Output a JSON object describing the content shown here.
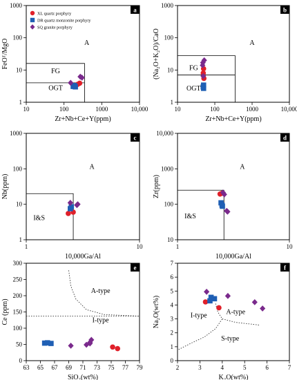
{
  "colors": {
    "xl": "#e0202a",
    "dr": "#1f5fb4",
    "sq": "#7a2a8c"
  },
  "chart_data": [
    {
      "id": "a",
      "type": "scatter",
      "panel_label": "a",
      "xscale": "log",
      "yscale": "log",
      "xlim": [
        10,
        10000
      ],
      "ylim": [
        1,
        1000
      ],
      "xticks": [
        "10",
        "100",
        "1000",
        "10,000"
      ],
      "yticks": [
        "1",
        "10",
        "100",
        "1000"
      ],
      "xlabel": "Zr+Nb+Ce+Y(ppm)",
      "ylabel": "FeOᵀ/MgO",
      "legend": {
        "position": "top-left",
        "entries": [
          {
            "name": "XL quartz porphyry",
            "marker": "circle",
            "color_key": "xl"
          },
          {
            "name": "DR quartz monzonite porphyry",
            "marker": "square",
            "color_key": "dr"
          },
          {
            "name": "SQ granite porphyry",
            "marker": "diamond",
            "color_key": "sq"
          }
        ]
      },
      "field_labels": [
        {
          "text": "A",
          "x": 400,
          "y": 60
        },
        {
          "text": "FG",
          "x": 60,
          "y": 8
        },
        {
          "text": "OGT",
          "x": 60,
          "y": 2.4
        }
      ],
      "boundaries": [
        [
          [
            10,
            16
          ],
          [
            350,
            16
          ],
          [
            350,
            1
          ]
        ],
        [
          [
            10,
            4
          ],
          [
            350,
            4
          ]
        ]
      ],
      "series": [
        {
          "name": "XL quartz porphyry",
          "color_key": "xl",
          "marker": "circle",
          "points": [
            [
              230,
              3.6
            ],
            [
              260,
              3.9
            ]
          ]
        },
        {
          "name": "DR quartz monzonite porphyry",
          "color_key": "dr",
          "marker": "square",
          "points": [
            [
              175,
              3.1
            ],
            [
              190,
              3.3
            ],
            [
              200,
              3.0
            ]
          ]
        },
        {
          "name": "SQ granite porphyry",
          "color_key": "sq",
          "marker": "diamond",
          "points": [
            [
              150,
              4.0
            ],
            [
              270,
              6.2
            ],
            [
              300,
              5.8
            ]
          ]
        }
      ]
    },
    {
      "id": "b",
      "type": "scatter",
      "panel_label": "b",
      "xscale": "log",
      "yscale": "log",
      "xlim": [
        10,
        10000
      ],
      "ylim": [
        1,
        1000
      ],
      "xticks": [
        "10",
        "100",
        "1000",
        "10,000"
      ],
      "yticks": [
        "1",
        "10",
        "100",
        "1000"
      ],
      "xlabel": "Zr+Nb+Ce+Y(ppm)",
      "ylabel": "(Na₂O+K₂O)/CaO",
      "field_labels": [
        {
          "text": "A",
          "x": 1000,
          "y": 60
        },
        {
          "text": "FG",
          "x": 27,
          "y": 10
        },
        {
          "text": "OGT",
          "x": 27,
          "y": 2.3
        }
      ],
      "boundaries": [
        [
          [
            10,
            28
          ],
          [
            350,
            28
          ],
          [
            350,
            1
          ]
        ],
        [
          [
            10,
            7
          ],
          [
            350,
            7
          ]
        ]
      ],
      "series": [
        {
          "name": "XL quartz porphyry",
          "color_key": "xl",
          "marker": "circle",
          "points": [
            [
              50,
              11
            ],
            [
              49,
              8
            ],
            [
              51,
              5.5
            ]
          ]
        },
        {
          "name": "DR quartz monzonite porphyry",
          "color_key": "dr",
          "marker": "square",
          "points": [
            [
              49,
              3.0
            ],
            [
              50,
              2.7
            ],
            [
              50,
              3.4
            ]
          ]
        },
        {
          "name": "SQ granite porphyry",
          "color_key": "sq",
          "marker": "diamond",
          "points": [
            [
              48,
              17
            ],
            [
              52,
              20
            ],
            [
              47,
              14
            ],
            [
              49,
              6.5
            ]
          ]
        }
      ]
    },
    {
      "id": "c",
      "type": "scatter",
      "panel_label": "c",
      "xscale": "log",
      "yscale": "log",
      "xlim": [
        1,
        10
      ],
      "ylim": [
        1,
        1000
      ],
      "xticks": [
        "1",
        "10"
      ],
      "yticks": [
        "1",
        "10",
        "100",
        "1000"
      ],
      "xlabel": "10,000Ga/Al",
      "ylabel": "Nb(ppm)",
      "field_labels": [
        {
          "text": "A",
          "x": 3.8,
          "y": 100
        },
        {
          "text": "I&S",
          "x": 1.3,
          "y": 3.6
        }
      ],
      "boundaries": [
        [
          [
            1,
            20
          ],
          [
            2.6,
            20
          ],
          [
            2.6,
            1
          ]
        ]
      ],
      "series": [
        {
          "name": "XL quartz porphyry",
          "color_key": "xl",
          "marker": "circle",
          "points": [
            [
              2.35,
              5.5
            ],
            [
              2.6,
              6.0
            ]
          ]
        },
        {
          "name": "DR quartz monzonite porphyry",
          "color_key": "dr",
          "marker": "square",
          "points": [
            [
              2.45,
              7.5
            ],
            [
              2.5,
              8.5
            ]
          ]
        },
        {
          "name": "SQ granite porphyry",
          "color_key": "sq",
          "marker": "diamond",
          "points": [
            [
              2.45,
              11
            ],
            [
              2.8,
              9.5
            ],
            [
              2.85,
              10
            ]
          ]
        }
      ]
    },
    {
      "id": "d",
      "type": "scatter",
      "panel_label": "d",
      "xscale": "log",
      "yscale": "log",
      "xlim": [
        1,
        10
      ],
      "ylim": [
        10,
        10000
      ],
      "xticks": [
        "1",
        "10"
      ],
      "yticks": [
        "10",
        "100",
        "1000",
        "10,000"
      ],
      "xlabel": "10,000Ga/Al",
      "ylabel": "Zr(ppm)",
      "field_labels": [
        {
          "text": "A",
          "x": 3.8,
          "y": 1000
        },
        {
          "text": "I&S",
          "x": 1.3,
          "y": 40
        }
      ],
      "boundaries": [
        [
          [
            1,
            250
          ],
          [
            2.6,
            250
          ],
          [
            2.6,
            10
          ]
        ]
      ],
      "series": [
        {
          "name": "XL quartz porphyry",
          "color_key": "xl",
          "marker": "circle",
          "points": [
            [
              2.4,
              195
            ],
            [
              2.5,
              205
            ]
          ]
        },
        {
          "name": "DR quartz monzonite porphyry",
          "color_key": "dr",
          "marker": "square",
          "points": [
            [
              2.45,
              110
            ],
            [
              2.5,
              95
            ],
            [
              2.52,
              88
            ]
          ]
        },
        {
          "name": "SQ granite porphyry",
          "color_key": "sq",
          "marker": "diamond",
          "points": [
            [
              2.55,
              215
            ],
            [
              2.62,
              190
            ],
            [
              2.75,
              65
            ],
            [
              2.8,
              62
            ]
          ]
        }
      ]
    },
    {
      "id": "e",
      "type": "scatter",
      "panel_label": "e",
      "xscale": "linear",
      "yscale": "linear",
      "xlim": [
        63,
        79
      ],
      "ylim": [
        0,
        300
      ],
      "xticks": [
        "63",
        "65",
        "67",
        "69",
        "71",
        "73",
        "75",
        "77",
        "79"
      ],
      "yticks": [
        "0",
        "50",
        "100",
        "150",
        "200",
        "250",
        "300"
      ],
      "xlabel": "SiO₂(wt%)",
      "ylabel": "Ce (ppm)",
      "field_labels": [
        {
          "text": "A-type",
          "x": 73.5,
          "y": 208
        },
        {
          "text": "I-type",
          "x": 73.5,
          "y": 118
        }
      ],
      "boundaries_dotted": [
        [
          [
            63,
            137
          ],
          [
            79,
            137
          ]
        ],
        [
          [
            69,
            278
          ],
          [
            69.3,
            230
          ],
          [
            70,
            190
          ],
          [
            71.5,
            157
          ],
          [
            74,
            142
          ],
          [
            79,
            137
          ]
        ]
      ],
      "series": [
        {
          "name": "XL quartz porphyry",
          "color_key": "xl",
          "marker": "circle",
          "points": [
            [
              75.2,
              42
            ],
            [
              75.9,
              37
            ]
          ]
        },
        {
          "name": "DR quartz monzonite porphyry",
          "color_key": "dr",
          "marker": "square",
          "points": [
            [
              65.6,
              54
            ],
            [
              66.0,
              55
            ],
            [
              66.5,
              53
            ]
          ]
        },
        {
          "name": "SQ granite porphyry",
          "color_key": "sq",
          "marker": "diamond",
          "points": [
            [
              69.3,
              46
            ],
            [
              71.5,
              49
            ],
            [
              72.0,
              56
            ],
            [
              72.2,
              64
            ],
            [
              72.0,
              53
            ]
          ]
        }
      ]
    },
    {
      "id": "f",
      "type": "scatter",
      "panel_label": "f",
      "xscale": "linear",
      "yscale": "linear",
      "xlim": [
        2,
        7
      ],
      "ylim": [
        0,
        7
      ],
      "xticks": [
        "2",
        "3",
        "4",
        "5",
        "6",
        "7"
      ],
      "yticks": [
        "0",
        "1",
        "2",
        "3",
        "4",
        "5",
        "6",
        "7"
      ],
      "xlabel": "K₂O(wt%)",
      "ylabel": "Na₂O(wt%)",
      "field_labels": [
        {
          "text": "I-type",
          "x": 2.95,
          "y": 3.1
        },
        {
          "text": "A-type",
          "x": 4.6,
          "y": 3.35
        },
        {
          "text": "S-type",
          "x": 4.35,
          "y": 1.45
        }
      ],
      "boundaries_dotted": [
        [
          [
            3.7,
            4.1
          ],
          [
            3.8,
            3.5
          ],
          [
            4.0,
            3.0
          ],
          [
            4.6,
            2.75
          ],
          [
            5.7,
            2.55
          ]
        ],
        [
          [
            2.05,
            0.8
          ],
          [
            2.6,
            1.25
          ],
          [
            3.2,
            1.7
          ],
          [
            3.7,
            2.3
          ],
          [
            4.0,
            3.0
          ]
        ]
      ],
      "series": [
        {
          "name": "XL quartz porphyry",
          "color_key": "xl",
          "marker": "circle",
          "points": [
            [
              3.25,
              4.22
            ],
            [
              3.85,
              3.8
            ]
          ]
        },
        {
          "name": "DR quartz monzonite porphyry",
          "color_key": "dr",
          "marker": "square",
          "points": [
            [
              3.45,
              4.3
            ],
            [
              3.5,
              4.55
            ],
            [
              3.65,
              4.45
            ]
          ]
        },
        {
          "name": "SQ granite porphyry",
          "color_key": "sq",
          "marker": "diamond",
          "points": [
            [
              3.3,
              4.95
            ],
            [
              4.25,
              4.65
            ],
            [
              5.45,
              4.2
            ],
            [
              5.8,
              3.75
            ]
          ]
        }
      ]
    }
  ]
}
